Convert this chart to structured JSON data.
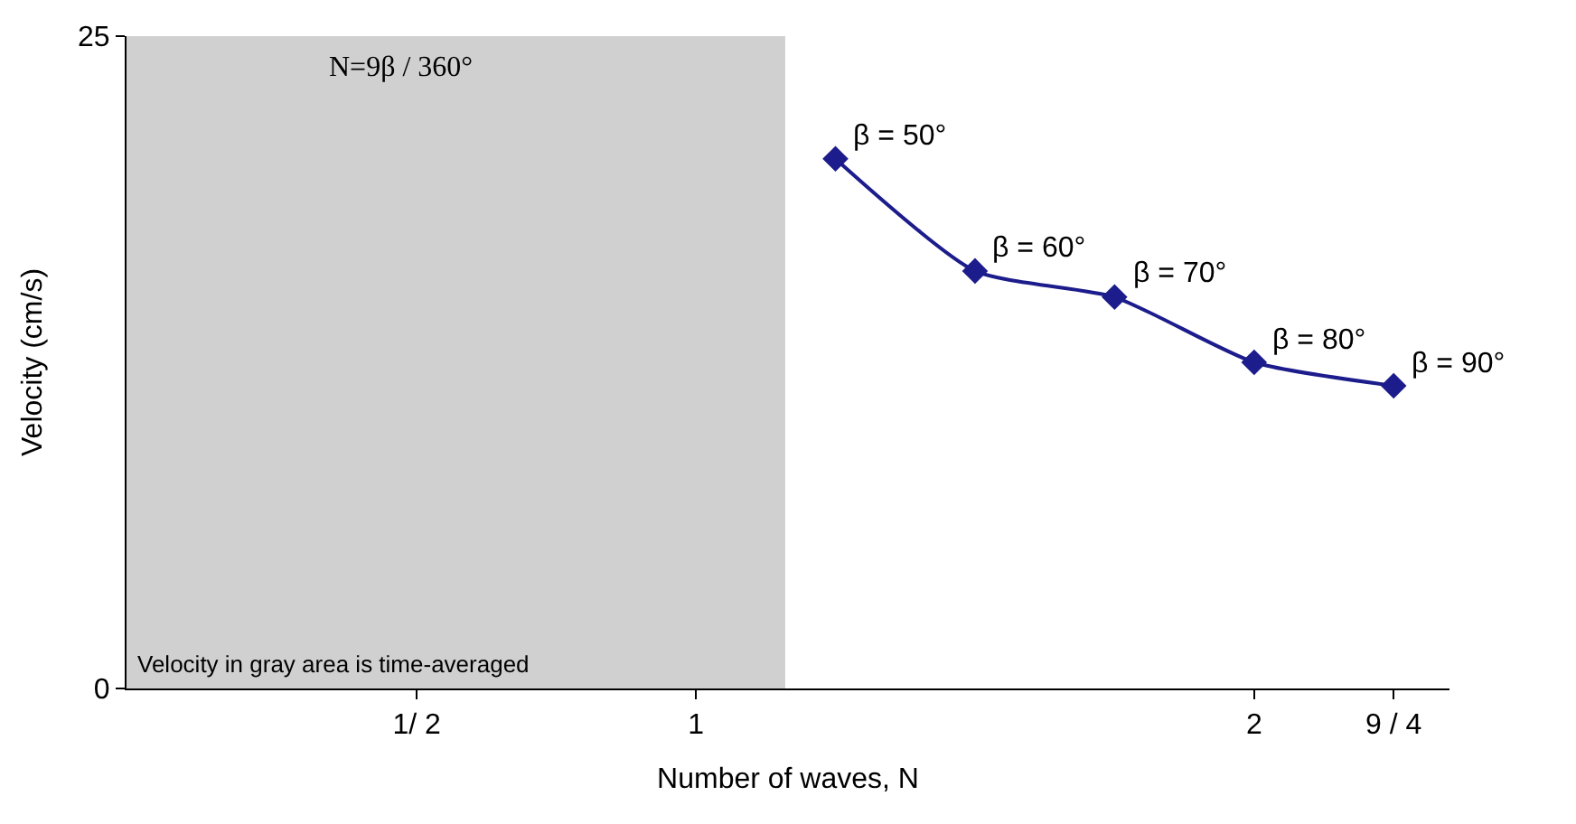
{
  "chart_data": {
    "type": "line",
    "xlabel": "Number of waves, N",
    "ylabel": "Velocity (cm/s)",
    "x": [
      1.25,
      1.5,
      1.75,
      2,
      2.25
    ],
    "series": [
      {
        "color": "#1c1c8c",
        "values": [
          20.3,
          16.0,
          15.0,
          12.5,
          11.6
        ]
      }
    ],
    "xlim": [
      -0.02,
      2.35
    ],
    "ylim": [
      0,
      25
    ],
    "xticks": [
      {
        "value": 0.5,
        "label": "1/ 2"
      },
      1,
      2,
      {
        "value": 2.25,
        "label": "9 / 4"
      }
    ],
    "yticks": [
      0,
      25
    ],
    "bands": [
      {
        "axis": "x",
        "from": -0.02,
        "to": 1.16,
        "color": "#d0d0d0"
      }
    ],
    "annotations": [
      {
        "text": "β = 50°",
        "x": 1.25,
        "y": 20.3
      },
      {
        "text": "β = 60°",
        "x": 1.5,
        "y": 16.0
      },
      {
        "text": "β = 70°",
        "x": 1.75,
        "y": 15.0
      },
      {
        "text": "β = 80°",
        "x": 2,
        "y": 12.5
      },
      {
        "text": "β = 90°",
        "x": 2.25,
        "y": 11.6
      },
      "N=9β / 360°",
      "Velocity in gray area is time-averaged"
    ],
    "grid": false,
    "legend": false,
    "marker": "diamond",
    "line_style": "solid"
  }
}
